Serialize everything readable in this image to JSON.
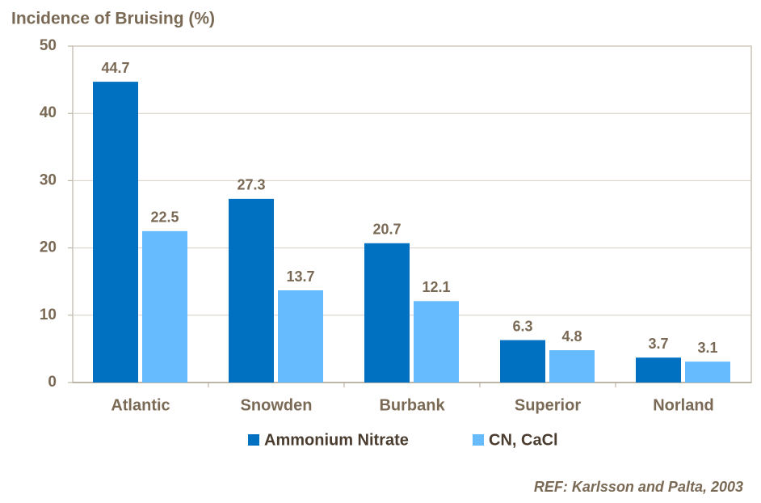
{
  "chart_data": {
    "type": "bar",
    "title": "Incidence of Bruising (%)",
    "categories": [
      "Atlantic",
      "Snowden",
      "Burbank",
      "Superior",
      "Norland"
    ],
    "series": [
      {
        "name": "Ammonium Nitrate",
        "color": "#0070c0",
        "values": [
          44.7,
          27.3,
          20.7,
          6.3,
          3.7
        ]
      },
      {
        "name": "CN, CaCl",
        "color": "#66bbff",
        "values": [
          22.5,
          13.7,
          12.1,
          4.8,
          3.1
        ]
      }
    ],
    "ylim": [
      0,
      50
    ],
    "yticks": [
      0,
      10,
      20,
      30,
      40,
      50
    ],
    "grid": true,
    "legend": "bottom",
    "reference": "REF: Karlsson and Palta, 2003"
  }
}
